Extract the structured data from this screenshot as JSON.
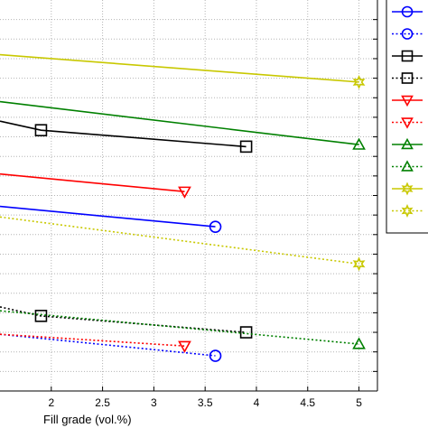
{
  "chart_data": {
    "type": "line",
    "title": "",
    "xlabel": "Fill grade (vol.%)",
    "ylabel": "",
    "xlim": [
      1.5,
      5.18
    ],
    "ylim": [
      0,
      10
    ],
    "xticks": [
      2,
      2.5,
      3,
      3.5,
      4,
      4.5,
      5
    ],
    "xtick_labels": [
      "2",
      "2.5",
      "3",
      "3.5",
      "4",
      "4.5",
      "5"
    ],
    "grid": true,
    "legend_position": "right",
    "series": [
      {
        "color": "#0000ff",
        "style": "solid",
        "marker": "circle",
        "x": [
          1.5,
          3.6
        ],
        "y": [
          4.72,
          4.2
        ]
      },
      {
        "color": "#0000ff",
        "style": "dotted",
        "marker": "circle",
        "x": [
          1.5,
          3.6
        ],
        "y": [
          1.45,
          0.9
        ]
      },
      {
        "color": "#000000",
        "style": "solid",
        "marker": "square",
        "x": [
          1.5,
          1.9,
          3.9
        ],
        "y": [
          6.9,
          6.67,
          6.25
        ]
      },
      {
        "color": "#000000",
        "style": "dotted",
        "marker": "square",
        "x": [
          1.5,
          1.9,
          3.9
        ],
        "y": [
          2.15,
          1.92,
          1.5
        ]
      },
      {
        "color": "#ff0000",
        "style": "solid",
        "marker": "triangle-down",
        "x": [
          1.5,
          3.3
        ],
        "y": [
          5.55,
          5.1
        ]
      },
      {
        "color": "#ff0000",
        "style": "dotted",
        "marker": "triangle-down",
        "x": [
          1.5,
          3.3
        ],
        "y": [
          1.45,
          1.15
        ]
      },
      {
        "color": "#008000",
        "style": "solid",
        "marker": "triangle-up",
        "x": [
          1.5,
          5.0
        ],
        "y": [
          7.4,
          6.3
        ]
      },
      {
        "color": "#008000",
        "style": "dotted",
        "marker": "triangle-up",
        "x": [
          1.5,
          5.0
        ],
        "y": [
          2.05,
          1.2
        ]
      },
      {
        "color": "#c8c800",
        "style": "solid",
        "marker": "star",
        "x": [
          1.5,
          5.0
        ],
        "y": [
          8.6,
          7.9
        ]
      },
      {
        "color": "#c8c800",
        "style": "dotted",
        "marker": "star",
        "x": [
          1.5,
          5.0
        ],
        "y": [
          4.45,
          3.25
        ]
      }
    ]
  }
}
